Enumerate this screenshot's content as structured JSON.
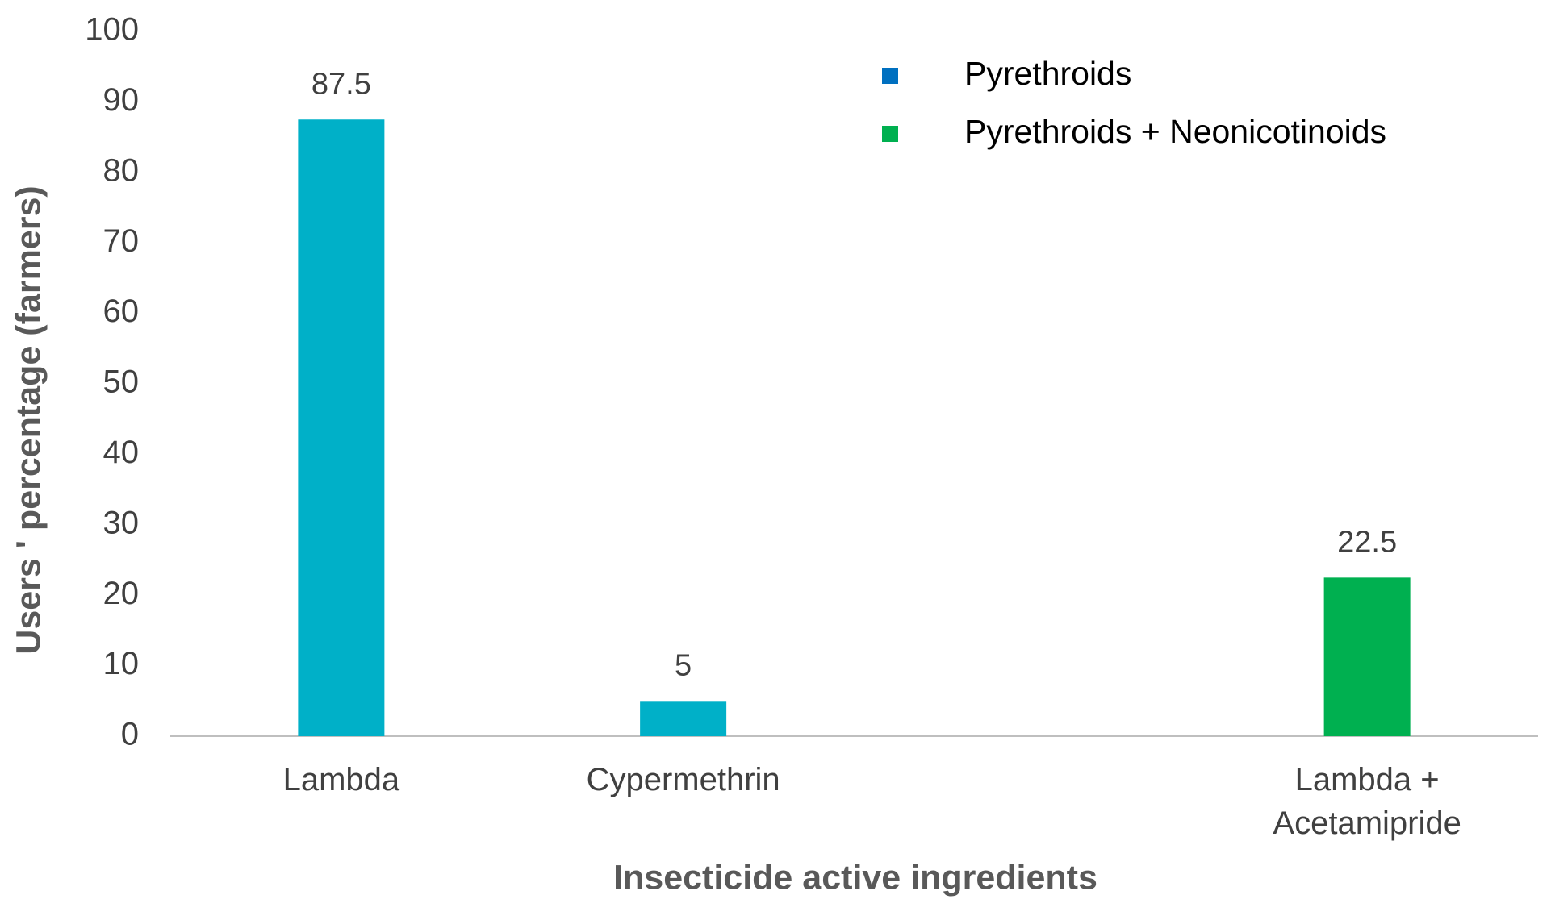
{
  "chart_data": {
    "type": "bar",
    "x_label": "Insecticide active ingredients",
    "y_label": "Users ' percentage (farmers)",
    "categories": [
      "Lambda",
      "Cypermethrin",
      null,
      "Lambda + Acetamipride"
    ],
    "series": [
      {
        "name": "Pyrethroids",
        "color": "#00b0c8",
        "legend_color": "#0070c0",
        "values": [
          87.5,
          5,
          null,
          null
        ]
      },
      {
        "name": "Pyrethroids + Neonicotinoids",
        "color": "#00b050",
        "legend_color": "#00b050",
        "values": [
          null,
          null,
          null,
          22.5
        ]
      }
    ],
    "ylim": [
      0,
      100
    ],
    "yticks": [
      0,
      10,
      20,
      30,
      40,
      50,
      60,
      70,
      80,
      90,
      100
    ],
    "grid": false,
    "legend": "upper right"
  }
}
